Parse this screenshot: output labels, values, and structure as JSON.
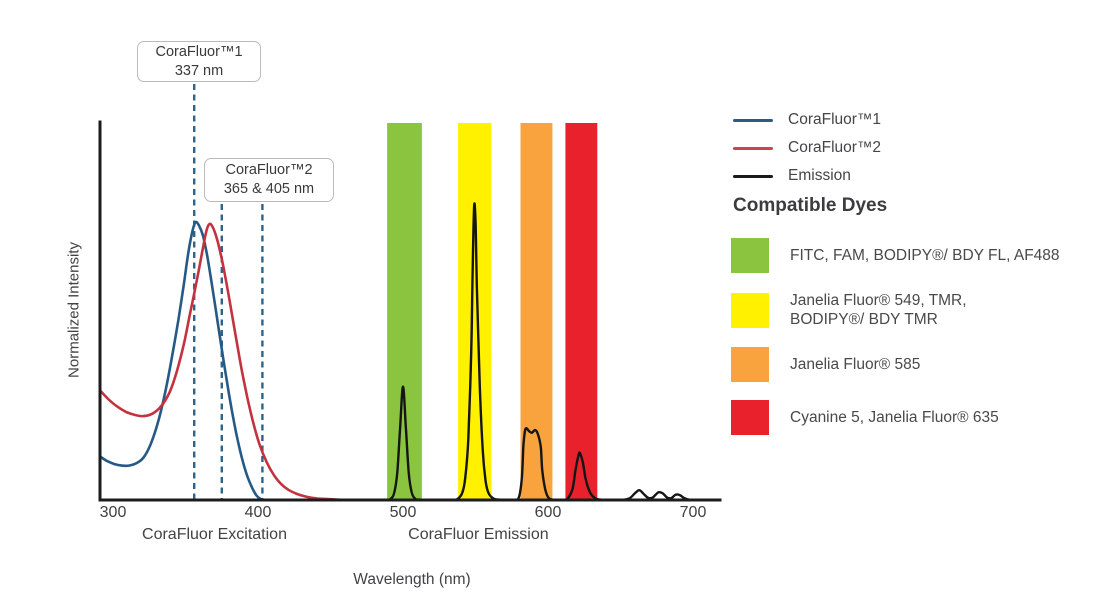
{
  "legend": {
    "items": [
      {
        "label": "CoraFluor™1",
        "color": "#2b5c87"
      },
      {
        "label": "CoraFluor™2",
        "color": "#c8444f"
      },
      {
        "label": "Emission",
        "color": "#1a1a1a"
      }
    ]
  },
  "compatible_dyes": {
    "heading": "Compatible Dyes",
    "items": [
      {
        "name": "green-filter-dyes",
        "color": "#8bc53f",
        "lines": [
          "FITC, FAM, BODIPY®/ BDY FL, AF488"
        ]
      },
      {
        "name": "yellow-filter-dyes",
        "color": "#fff100",
        "lines": [
          "Janelia Fluor® 549, TMR,",
          "BODIPY®/ BDY TMR"
        ]
      },
      {
        "name": "orange-filter-dyes",
        "color": "#f8a33d",
        "lines": [
          "Janelia Fluor® 585"
        ]
      },
      {
        "name": "red-filter-dyes",
        "color": "#e8212d",
        "lines": [
          "Cyanine 5, Janelia Fluor® 635"
        ]
      }
    ]
  },
  "chart_data": {
    "type": "line",
    "xlabel": "Wavelength (nm)",
    "ylabel": "Normalized Intensity",
    "xlim": [
      291,
      719
    ],
    "ylim": [
      0,
      1
    ],
    "xticks": [
      "300",
      "400",
      "500",
      "600",
      "700"
    ],
    "grid": false,
    "legend_position": "right",
    "marker_color": "#2e6488",
    "axis_captions": [
      {
        "text": "CoraFluor Excitation",
        "center_nm": 370
      },
      {
        "text": "CoraFluor Emission",
        "center_nm": 552
      }
    ],
    "markers": [
      {
        "label": "CoraFluor™1",
        "sublabel": "337 nm",
        "lines_nm": [
          356
        ]
      },
      {
        "label": "CoraFluor™2",
        "sublabel": "365 & 405 nm",
        "lines_nm": [
          375,
          403
        ]
      }
    ],
    "filter_bands": [
      {
        "name": "green",
        "color": "#8bc53f",
        "from_nm": 489,
        "to_nm": 513
      },
      {
        "name": "yellow",
        "color": "#fff100",
        "from_nm": 538,
        "to_nm": 561
      },
      {
        "name": "orange",
        "color": "#f8a33d",
        "from_nm": 581,
        "to_nm": 603
      },
      {
        "name": "red",
        "color": "#e8212d",
        "from_nm": 612,
        "to_nm": 634
      }
    ],
    "series": [
      {
        "name": "CoraFluor™1",
        "role": "excitation",
        "color": "#265a86",
        "width": 2.6,
        "points": [
          [
            291,
            0.115
          ],
          [
            296,
            0.103
          ],
          [
            301,
            0.095
          ],
          [
            306,
            0.091
          ],
          [
            311,
            0.091
          ],
          [
            316,
            0.097
          ],
          [
            321,
            0.112
          ],
          [
            326,
            0.148
          ],
          [
            331,
            0.205
          ],
          [
            336,
            0.285
          ],
          [
            341,
            0.385
          ],
          [
            345,
            0.475
          ],
          [
            349,
            0.575
          ],
          [
            352,
            0.655
          ],
          [
            355,
            0.715
          ],
          [
            357,
            0.735
          ],
          [
            359,
            0.728
          ],
          [
            362,
            0.7
          ],
          [
            365,
            0.645
          ],
          [
            368,
            0.575
          ],
          [
            372,
            0.475
          ],
          [
            376,
            0.375
          ],
          [
            380,
            0.28
          ],
          [
            384,
            0.195
          ],
          [
            388,
            0.125
          ],
          [
            392,
            0.07
          ],
          [
            396,
            0.032
          ],
          [
            399,
            0.012
          ],
          [
            402,
            0.002
          ],
          [
            404,
            0.0
          ]
        ]
      },
      {
        "name": "CoraFluor™2",
        "role": "excitation",
        "color": "#c43240",
        "width": 2.6,
        "points": [
          [
            291,
            0.29
          ],
          [
            297,
            0.266
          ],
          [
            303,
            0.247
          ],
          [
            309,
            0.233
          ],
          [
            315,
            0.225
          ],
          [
            321,
            0.222
          ],
          [
            327,
            0.228
          ],
          [
            333,
            0.247
          ],
          [
            339,
            0.285
          ],
          [
            344,
            0.34
          ],
          [
            349,
            0.415
          ],
          [
            353,
            0.49
          ],
          [
            357,
            0.565
          ],
          [
            361,
            0.645
          ],
          [
            364,
            0.705
          ],
          [
            366,
            0.728
          ],
          [
            368,
            0.727
          ],
          [
            371,
            0.7
          ],
          [
            374,
            0.655
          ],
          [
            377,
            0.6
          ],
          [
            381,
            0.515
          ],
          [
            385,
            0.425
          ],
          [
            389,
            0.34
          ],
          [
            393,
            0.265
          ],
          [
            397,
            0.2
          ],
          [
            401,
            0.148
          ],
          [
            406,
            0.1
          ],
          [
            411,
            0.066
          ],
          [
            416,
            0.042
          ],
          [
            421,
            0.027
          ],
          [
            427,
            0.016
          ],
          [
            433,
            0.009
          ],
          [
            441,
            0.004
          ],
          [
            450,
            0.002
          ],
          [
            460,
            0.0
          ]
        ]
      },
      {
        "name": "Emission",
        "role": "emission",
        "color": "#151515",
        "width": 2.4,
        "points": [
          [
            470,
            0.0
          ],
          [
            488,
            0.0
          ],
          [
            492,
            0.005
          ],
          [
            494,
            0.02
          ],
          [
            496,
            0.07
          ],
          [
            498,
            0.19
          ],
          [
            500,
            0.3
          ],
          [
            502,
            0.19
          ],
          [
            504,
            0.07
          ],
          [
            506,
            0.02
          ],
          [
            508,
            0.005
          ],
          [
            511,
            0.001
          ],
          [
            533,
            0.0
          ],
          [
            538,
            0.004
          ],
          [
            541,
            0.02
          ],
          [
            543,
            0.06
          ],
          [
            545,
            0.16
          ],
          [
            547,
            0.38
          ],
          [
            548,
            0.6
          ],
          [
            549,
            0.775
          ],
          [
            550,
            0.74
          ],
          [
            551,
            0.56
          ],
          [
            553,
            0.3
          ],
          [
            555,
            0.13
          ],
          [
            557,
            0.05
          ],
          [
            559,
            0.018
          ],
          [
            562,
            0.005
          ],
          [
            566,
            0.001
          ],
          [
            577,
            0.0
          ],
          [
            580,
            0.008
          ],
          [
            582,
            0.06
          ],
          [
            583,
            0.14
          ],
          [
            584,
            0.18
          ],
          [
            585,
            0.19
          ],
          [
            587,
            0.182
          ],
          [
            589,
            0.178
          ],
          [
            591,
            0.185
          ],
          [
            593,
            0.175
          ],
          [
            595,
            0.14
          ],
          [
            596,
            0.08
          ],
          [
            598,
            0.03
          ],
          [
            600,
            0.008
          ],
          [
            603,
            0.001
          ],
          [
            611,
            0.0
          ],
          [
            614,
            0.006
          ],
          [
            617,
            0.03
          ],
          [
            619,
            0.08
          ],
          [
            621,
            0.118
          ],
          [
            622,
            0.124
          ],
          [
            624,
            0.1
          ],
          [
            626,
            0.055
          ],
          [
            629,
            0.02
          ],
          [
            632,
            0.006
          ],
          [
            636,
            0.001
          ],
          [
            650,
            0.0
          ],
          [
            656,
            0.004
          ],
          [
            660,
            0.018
          ],
          [
            663,
            0.026
          ],
          [
            666,
            0.016
          ],
          [
            669,
            0.006
          ],
          [
            672,
            0.006
          ],
          [
            676,
            0.02
          ],
          [
            679,
            0.018
          ],
          [
            682,
            0.007
          ],
          [
            685,
            0.005
          ],
          [
            688,
            0.014
          ],
          [
            691,
            0.013
          ],
          [
            694,
            0.005
          ],
          [
            697,
            0.001
          ],
          [
            702,
            0.0
          ],
          [
            716,
            0.0
          ]
        ]
      }
    ]
  }
}
